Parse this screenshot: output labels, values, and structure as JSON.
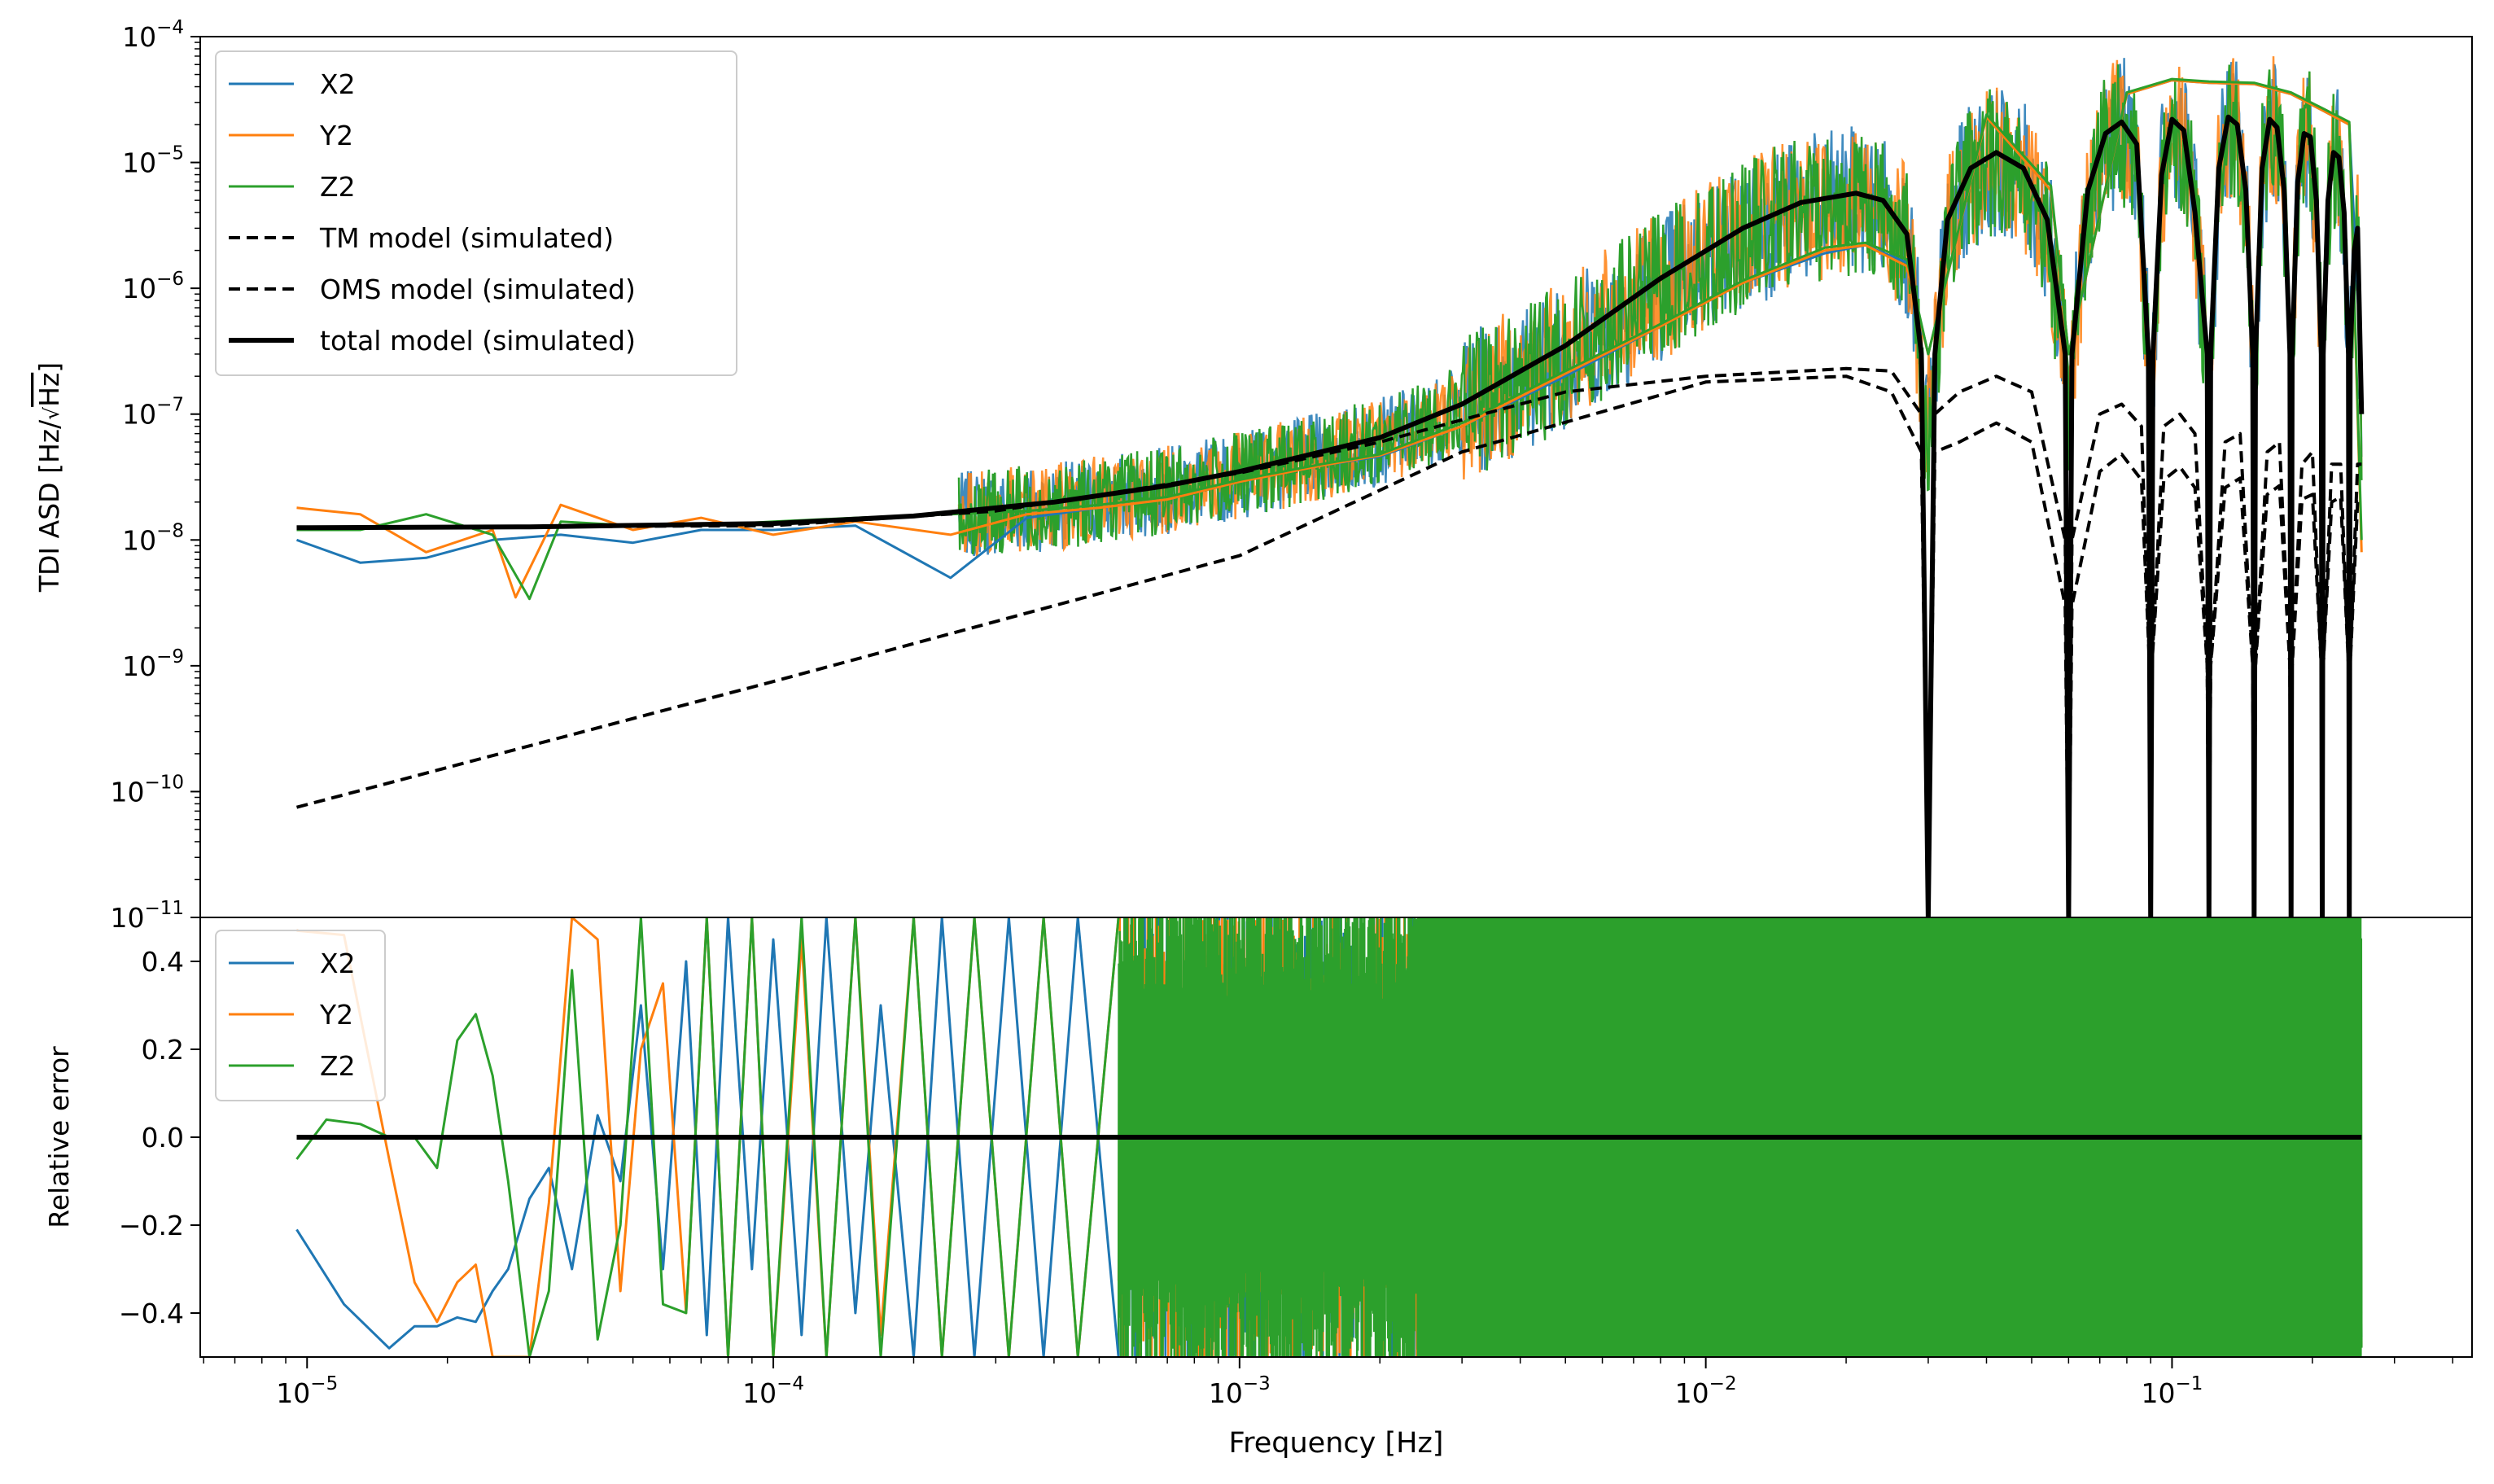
{
  "chart_data": [
    {
      "type": "line",
      "panel": "top",
      "ylabel": "TDI ASD [Hz/√Hz]",
      "ylabel_parts": {
        "main": "TDI ASD [Hz/",
        "sqrt": "√",
        "sqrt_arg": "Hz",
        "close": "]"
      },
      "xscale": "log",
      "yscale": "log",
      "xlim": [
        5.9e-06,
        0.44
      ],
      "ylim": [
        1e-11,
        0.0001
      ],
      "y_ticks": [
        {
          "value": 1e-11,
          "base": "10",
          "exp": "−11"
        },
        {
          "value": 1e-10,
          "base": "10",
          "exp": "−10"
        },
        {
          "value": 1e-09,
          "base": "10",
          "exp": "−9"
        },
        {
          "value": 1e-08,
          "base": "10",
          "exp": "−8"
        },
        {
          "value": 1e-07,
          "base": "10",
          "exp": "−7"
        },
        {
          "value": 1e-06,
          "base": "10",
          "exp": "−6"
        },
        {
          "value": 1e-05,
          "base": "10",
          "exp": "−5"
        },
        {
          "value": 0.0001,
          "base": "10",
          "exp": "−4"
        }
      ],
      "legend_position": "upper-left",
      "series": [
        {
          "name": "X2",
          "color": "#1f77b4",
          "style": "solid",
          "x": [
            9.5e-06,
            1.3e-05,
            1.8e-05,
            2.5e-05,
            3.5e-05,
            5e-05,
            7e-05,
            0.0001,
            0.00015,
            0.00024,
            0.00035,
            0.0005,
            0.0007,
            0.001,
            0.0015,
            0.002,
            0.003,
            0.005,
            0.008,
            0.012,
            0.018,
            0.022,
            0.027,
            0.03,
            0.04,
            0.055,
            0.06,
            0.08,
            0.1,
            0.12,
            0.15,
            0.18,
            0.21,
            0.24,
            0.255
          ],
          "y": [
            1e-08,
            6.6e-09,
            7.2e-09,
            1e-08,
            1.1e-08,
            9.5e-09,
            1.2e-08,
            1.2e-08,
            1.3e-08,
            5e-09,
            1.5e-08,
            1.8e-08,
            2.1e-08,
            2.9e-08,
            3.9e-08,
            4.6e-08,
            8e-08,
            2e-07,
            5e-07,
            1.1e-06,
            1.9e-06,
            2.2e-06,
            1.6e-06,
            3e-07,
            2.3e-05,
            6e-06,
            3e-07,
            3.5e-05,
            4.5e-05,
            4.3e-05,
            4.2e-05,
            3.5e-05,
            2.6e-05,
            2e-05,
            2e-07
          ]
        },
        {
          "name": "Y2",
          "color": "#ff7f0e",
          "style": "solid",
          "x": [
            9.5e-06,
            1.3e-05,
            1.8e-05,
            2.5e-05,
            2.8e-05,
            3.5e-05,
            5e-05,
            7e-05,
            0.0001,
            0.00015,
            0.00024,
            0.00035,
            0.0005,
            0.0007,
            0.001,
            0.0015,
            0.002,
            0.003,
            0.005,
            0.008,
            0.012,
            0.018,
            0.022,
            0.027,
            0.03,
            0.04,
            0.055,
            0.06,
            0.08,
            0.1,
            0.12,
            0.15,
            0.18,
            0.21,
            0.24,
            0.255
          ],
          "y": [
            1.8e-08,
            1.6e-08,
            8e-09,
            1.2e-08,
            3.5e-09,
            1.9e-08,
            1.2e-08,
            1.5e-08,
            1.1e-08,
            1.4e-08,
            1.1e-08,
            1.6e-08,
            1.8e-08,
            2.1e-08,
            2.9e-08,
            3.9e-08,
            4.7e-08,
            8e-08,
            2.1e-07,
            5e-07,
            1.1e-06,
            2e-06,
            2.2e-06,
            1.5e-06,
            3e-07,
            2.3e-05,
            6e-06,
            3e-07,
            3.5e-05,
            4.5e-05,
            4.3e-05,
            4.2e-05,
            3.5e-05,
            2.6e-05,
            2e-05,
            8e-09
          ]
        },
        {
          "name": "Z2",
          "color": "#2ca02c",
          "style": "solid",
          "x": [
            9.5e-06,
            1.3e-05,
            1.8e-05,
            2.5e-05,
            3e-05,
            3.5e-05,
            5e-05,
            7e-05,
            0.0001,
            0.00015,
            0.00024,
            0.00035,
            0.0005,
            0.0007,
            0.001,
            0.0015,
            0.002,
            0.003,
            0.005,
            0.008,
            0.012,
            0.018,
            0.022,
            0.027,
            0.03,
            0.04,
            0.055,
            0.06,
            0.08,
            0.1,
            0.12,
            0.15,
            0.18,
            0.21,
            0.24,
            0.255
          ],
          "y": [
            1.2e-08,
            1.2e-08,
            1.6e-08,
            1.1e-08,
            3.4e-09,
            1.4e-08,
            1.3e-08,
            1.3e-08,
            1.4e-08,
            1.5e-08,
            1.6e-08,
            1.7e-08,
            1.9e-08,
            2.2e-08,
            3e-08,
            4e-08,
            4.8e-08,
            8.5e-08,
            2.2e-07,
            5.2e-07,
            1.15e-06,
            2.1e-06,
            2.3e-06,
            1.7e-06,
            3e-07,
            2.4e-05,
            6.5e-06,
            3e-07,
            3.6e-05,
            4.6e-05,
            4.4e-05,
            4.3e-05,
            3.6e-05,
            2.7e-05,
            2.1e-05,
            1e-08
          ]
        },
        {
          "name": "TM model (simulated)",
          "color": "#000000",
          "style": "dashed",
          "x": [
            9.5e-06,
            0.0001,
            0.001,
            0.003,
            0.01,
            0.02,
            0.025,
            0.029,
            0.03,
            0.031,
            0.035,
            0.042,
            0.05,
            0.059,
            0.06,
            0.061,
            0.07,
            0.078,
            0.086,
            0.0895,
            0.09,
            0.0905,
            0.096,
            0.104,
            0.112,
            0.119,
            0.12,
            0.121,
            0.13,
            0.14,
            0.149,
            0.15,
            0.151,
            0.16,
            0.17,
            0.179,
            0.18,
            0.181,
            0.19,
            0.2,
            0.209,
            0.21,
            0.211,
            0.22,
            0.23,
            0.239,
            0.24,
            0.241,
            0.25,
            0.255
          ],
          "y": [
            7.5e-11,
            7.5e-10,
            7.5e-09,
            5e-08,
            1.8e-07,
            2e-07,
            1.5e-07,
            5e-08,
            1e-11,
            5e-08,
            6e-08,
            8.5e-08,
            6e-08,
            3e-09,
            1e-11,
            3e-09,
            3.5e-08,
            4.8e-08,
            3e-08,
            1e-09,
            1e-11,
            1e-09,
            3e-08,
            3.8e-08,
            2.6e-08,
            1e-09,
            1e-11,
            1e-09,
            2.6e-08,
            3.1e-08,
            1e-09,
            1e-11,
            1e-09,
            2.3e-08,
            2.7e-08,
            1e-09,
            1e-11,
            1e-09,
            2.1e-08,
            2.3e-08,
            1e-09,
            1e-11,
            1e-09,
            2e-08,
            2.2e-08,
            1e-09,
            1e-11,
            1e-09,
            2e-08,
            2e-08
          ]
        },
        {
          "name": "OMS model (simulated)",
          "color": "#000000",
          "style": "dashed",
          "x": [
            9.5e-06,
            0.0001,
            0.0003,
            0.001,
            0.002,
            0.003,
            0.005,
            0.01,
            0.02,
            0.025,
            0.029,
            0.03,
            0.031,
            0.035,
            0.042,
            0.05,
            0.059,
            0.06,
            0.061,
            0.07,
            0.078,
            0.086,
            0.0895,
            0.09,
            0.0905,
            0.096,
            0.104,
            0.112,
            0.119,
            0.12,
            0.121,
            0.13,
            0.14,
            0.149,
            0.15,
            0.151,
            0.16,
            0.17,
            0.179,
            0.18,
            0.181,
            0.19,
            0.2,
            0.209,
            0.21,
            0.211,
            0.22,
            0.23,
            0.239,
            0.24,
            0.241,
            0.25,
            0.255
          ],
          "y": [
            1.25e-08,
            1.3e-08,
            1.7e-08,
            3.4e-08,
            6e-08,
            9e-08,
            1.5e-07,
            2e-07,
            2.3e-07,
            2.2e-07,
            1e-07,
            1e-11,
            1e-07,
            1.5e-07,
            2e-07,
            1.5e-07,
            1e-08,
            1e-11,
            1e-08,
            1e-07,
            1.2e-07,
            8e-08,
            1e-09,
            1e-11,
            1e-09,
            8e-08,
            1e-07,
            7e-08,
            1e-09,
            1e-11,
            1e-09,
            6e-08,
            7e-08,
            1e-09,
            1e-11,
            1e-09,
            5e-08,
            6e-08,
            1e-09,
            1e-11,
            1e-09,
            4e-08,
            5e-08,
            1e-09,
            1e-11,
            1e-09,
            4e-08,
            4e-08,
            1e-09,
            1e-11,
            1e-09,
            4e-08,
            4e-08
          ]
        },
        {
          "name": "total model (simulated)",
          "color": "#000000",
          "style": "solid-thick",
          "x": [
            9.5e-06,
            3e-05,
            0.0001,
            0.0002,
            0.0004,
            0.0007,
            0.001,
            0.002,
            0.003,
            0.005,
            0.008,
            0.012,
            0.016,
            0.021,
            0.024,
            0.027,
            0.029,
            0.03,
            0.031,
            0.033,
            0.037,
            0.042,
            0.048,
            0.054,
            0.059,
            0.06,
            0.061,
            0.066,
            0.072,
            0.078,
            0.084,
            0.089,
            0.09,
            0.091,
            0.095,
            0.1,
            0.106,
            0.112,
            0.119,
            0.12,
            0.121,
            0.126,
            0.132,
            0.138,
            0.144,
            0.149,
            0.15,
            0.151,
            0.156,
            0.162,
            0.168,
            0.174,
            0.179,
            0.18,
            0.181,
            0.186,
            0.192,
            0.198,
            0.204,
            0.209,
            0.21,
            0.211,
            0.216,
            0.222,
            0.228,
            0.234,
            0.239,
            0.24,
            0.241,
            0.246,
            0.25,
            0.255
          ],
          "y": [
            1.25e-08,
            1.27e-08,
            1.35e-08,
            1.55e-08,
            2e-08,
            2.7e-08,
            3.5e-08,
            6.5e-08,
            1.2e-07,
            3.5e-07,
            1.2e-06,
            3e-06,
            4.8e-06,
            5.7e-06,
            5e-06,
            2.7e-06,
            3e-07,
            1e-11,
            3e-07,
            3.5e-06,
            9e-06,
            1.2e-05,
            9e-06,
            3.5e-06,
            3e-07,
            1e-11,
            3e-07,
            6e-06,
            1.7e-05,
            2.1e-05,
            1.4e-05,
            3e-07,
            1e-11,
            3e-07,
            8e-06,
            2.2e-05,
            1.8e-05,
            4e-06,
            3e-07,
            1e-11,
            3e-07,
            9e-06,
            2.3e-05,
            2e-05,
            6e-06,
            3e-07,
            1e-11,
            3e-07,
            9e-06,
            2.2e-05,
            1.9e-05,
            6e-06,
            3e-07,
            1e-11,
            3e-07,
            7e-06,
            1.7e-05,
            1.6e-05,
            5e-06,
            3e-07,
            1e-11,
            3e-07,
            5e-06,
            1.2e-05,
            1.1e-05,
            4e-06,
            3e-07,
            1e-11,
            3e-07,
            2e-06,
            3e-06,
            1e-07
          ]
        }
      ]
    },
    {
      "type": "line",
      "panel": "bottom",
      "ylabel": "Relative error",
      "xlabel": "Frequency [Hz]",
      "xscale": "log",
      "xlim": [
        5.9e-06,
        0.44
      ],
      "ylim": [
        -0.5,
        0.5
      ],
      "y_ticks": [
        {
          "value": -0.4,
          "label": "−0.4"
        },
        {
          "value": -0.2,
          "label": "−0.2"
        },
        {
          "value": 0.0,
          "label": "0.0"
        },
        {
          "value": 0.2,
          "label": "0.2"
        },
        {
          "value": 0.4,
          "label": "0.4"
        }
      ],
      "x_ticks": [
        {
          "value": 1e-05,
          "base": "10",
          "exp": "−5"
        },
        {
          "value": 0.0001,
          "base": "10",
          "exp": "−4"
        },
        {
          "value": 0.001,
          "base": "10",
          "exp": "−3"
        },
        {
          "value": 0.01,
          "base": "10",
          "exp": "−2"
        },
        {
          "value": 0.1,
          "base": "10",
          "exp": "−1"
        }
      ],
      "legend_position": "upper-left",
      "series": [
        {
          "name": "X2",
          "color": "#1f77b4",
          "style": "solid",
          "x": [
            9.5e-06,
            1.2e-05,
            1.5e-05,
            1.7e-05,
            1.9e-05,
            2.1e-05,
            2.3e-05,
            2.5e-05,
            2.7e-05,
            3e-05,
            3.3e-05,
            3.7e-05,
            4.2e-05,
            4.7e-05,
            5.2e-05,
            5.8e-05,
            6.5e-05,
            7.2e-05,
            8e-05,
            9e-05,
            0.0001,
            0.000115,
            0.00013,
            0.00015,
            0.00017,
            0.0002,
            0.00023,
            0.00027,
            0.00032,
            0.00038,
            0.00045,
            0.00055
          ],
          "y": [
            -0.21,
            -0.38,
            -0.48,
            -0.43,
            -0.43,
            -0.41,
            -0.42,
            -0.35,
            -0.3,
            -0.14,
            -0.07,
            -0.3,
            0.05,
            -0.1,
            0.3,
            -0.3,
            0.4,
            -0.45,
            0.5,
            -0.3,
            0.45,
            -0.45,
            0.5,
            -0.4,
            0.3,
            -0.5,
            0.5,
            -0.5,
            0.5,
            -0.5,
            0.5,
            -0.5
          ]
        },
        {
          "name": "Y2",
          "color": "#ff7f0e",
          "style": "solid",
          "x": [
            9.5e-06,
            1.2e-05,
            1.5e-05,
            1.7e-05,
            1.9e-05,
            2.1e-05,
            2.3e-05,
            2.5e-05,
            2.7e-05,
            3e-05,
            3.3e-05,
            3.7e-05,
            4.2e-05,
            4.7e-05,
            5.2e-05,
            5.8e-05,
            6.5e-05,
            7.2e-05,
            8e-05,
            9e-05,
            0.0001,
            0.000115,
            0.00013,
            0.00015,
            0.00017,
            0.0002,
            0.00023,
            0.00027,
            0.00032,
            0.00038,
            0.00045,
            0.00055
          ],
          "y": [
            0.47,
            0.46,
            -0.05,
            -0.33,
            -0.42,
            -0.33,
            -0.29,
            -0.5,
            -0.5,
            -0.5,
            -0.15,
            0.5,
            0.45,
            -0.35,
            0.2,
            0.35,
            -0.4,
            0.5,
            -0.5,
            0.5,
            -0.5,
            0.45,
            -0.5,
            0.5,
            -0.45,
            0.5,
            -0.5,
            0.5,
            -0.5,
            0.5,
            -0.5,
            0.5
          ]
        },
        {
          "name": "Z2",
          "color": "#2ca02c",
          "style": "solid",
          "x": [
            9.5e-06,
            1.1e-05,
            1.3e-05,
            1.5e-05,
            1.7e-05,
            1.9e-05,
            2.1e-05,
            2.3e-05,
            2.5e-05,
            2.7e-05,
            3e-05,
            3.3e-05,
            3.7e-05,
            4.2e-05,
            4.7e-05,
            5.2e-05,
            5.8e-05,
            6.5e-05,
            7.2e-05,
            8e-05,
            9e-05,
            0.0001,
            0.000115,
            0.00013,
            0.00015,
            0.00017,
            0.0002,
            0.00023,
            0.00027,
            0.00032,
            0.00038,
            0.00045,
            0.00055
          ],
          "y": [
            -0.05,
            0.04,
            0.03,
            0.0,
            0.0,
            -0.07,
            0.22,
            0.28,
            0.14,
            -0.1,
            -0.5,
            -0.35,
            0.38,
            -0.46,
            -0.2,
            0.5,
            -0.38,
            -0.4,
            0.5,
            -0.5,
            0.5,
            -0.5,
            0.5,
            -0.5,
            0.5,
            -0.5,
            0.5,
            -0.5,
            0.5,
            -0.5,
            0.5,
            -0.5,
            0.5
          ]
        },
        {
          "name": "",
          "color": "#000000",
          "style": "solid-thick",
          "x": [
            9.5e-06,
            0.255
          ],
          "y": [
            0.0,
            0.0
          ]
        }
      ],
      "dense_noise_band": {
        "x_start": 0.00055,
        "x_end": 0.255,
        "y_range": [
          -0.5,
          0.5
        ],
        "color": "#2ca02c"
      }
    }
  ]
}
